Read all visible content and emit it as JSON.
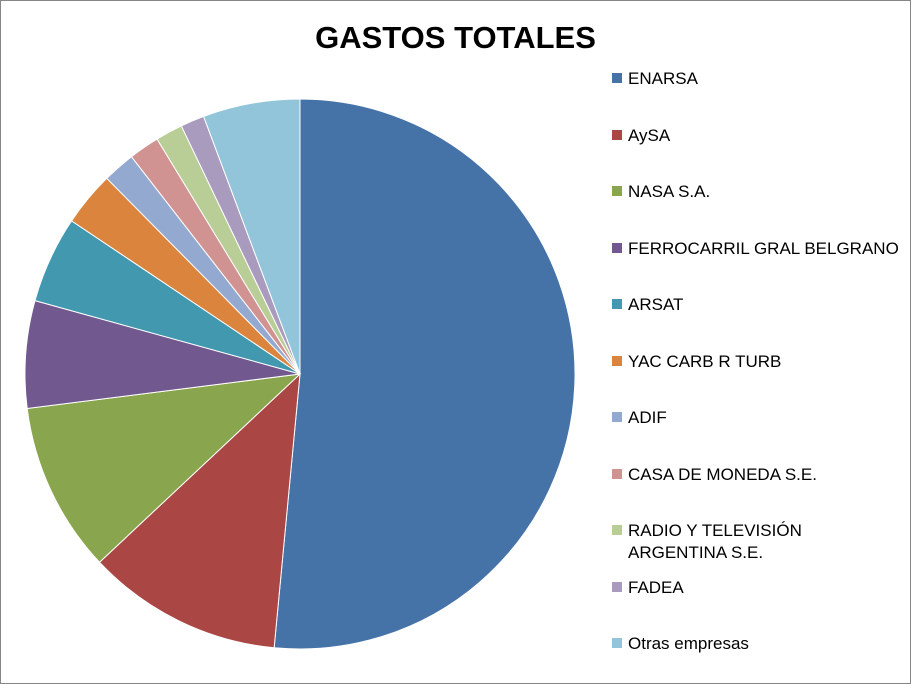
{
  "chart_data": {
    "type": "pie",
    "title": "GASTOS TOTALES",
    "categories": [
      "ENARSA",
      "AySA",
      "NASA S.A.",
      "FERROCARRIL GRAL BELGRANO",
      "ARSAT",
      "YAC CARB R TURB",
      "ADIF",
      "CASA DE MONEDA S.E.",
      "RADIO Y TELEVISIÓN ARGENTINA S.E.",
      "FADEA",
      "Otras empresas"
    ],
    "values": [
      51.5,
      11.5,
      10.0,
      6.3,
      5.1,
      3.2,
      1.9,
      1.8,
      1.6,
      1.4,
      5.7
    ],
    "colors": [
      "#4572A7",
      "#AA4643",
      "#89A54E",
      "#71588F",
      "#4198AF",
      "#DB843D",
      "#93A9CF",
      "#D19392",
      "#B9CD96",
      "#A99BBD",
      "#92C5D9"
    ],
    "legend_position": "right",
    "start_angle": "top (12 o'clock)",
    "direction": "clockwise"
  }
}
